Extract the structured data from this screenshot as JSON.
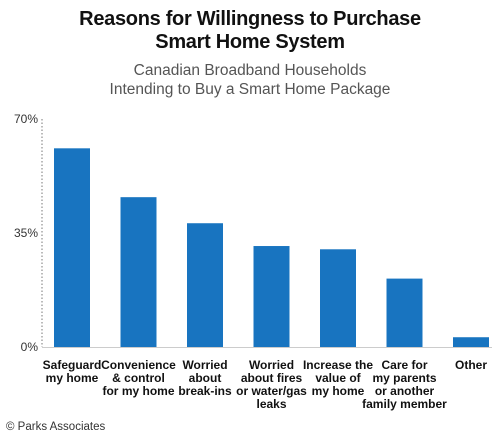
{
  "chart_data": {
    "type": "bar",
    "title_lines": [
      "Reasons for Willingness to Purchase",
      "Smart Home System"
    ],
    "subtitle_lines": [
      "Canadian Broadband Households",
      "Intending to Buy a Smart Home Package"
    ],
    "categories": [
      [
        "Safeguard",
        "my home"
      ],
      [
        "Convenience",
        "& control",
        "for my home"
      ],
      [
        "Worried",
        "about",
        "break-ins"
      ],
      [
        "Worried",
        "about fires",
        "or water/gas",
        "leaks"
      ],
      [
        "Increase the",
        "value of",
        "my home"
      ],
      [
        "Care for",
        "my parents",
        "or another",
        "family member"
      ],
      [
        "Other"
      ]
    ],
    "values": [
      61,
      46,
      38,
      31,
      30,
      21,
      3
    ],
    "yticks": [
      {
        "value": 0,
        "label": "0%"
      },
      {
        "value": 35,
        "label": "35%"
      },
      {
        "value": 70,
        "label": "70%"
      }
    ],
    "ylim": [
      0,
      70
    ],
    "xlabel": "",
    "ylabel": "",
    "grid": false,
    "bar_color": "#1874c0"
  },
  "footer": {
    "credit": "© Parks Associates"
  }
}
